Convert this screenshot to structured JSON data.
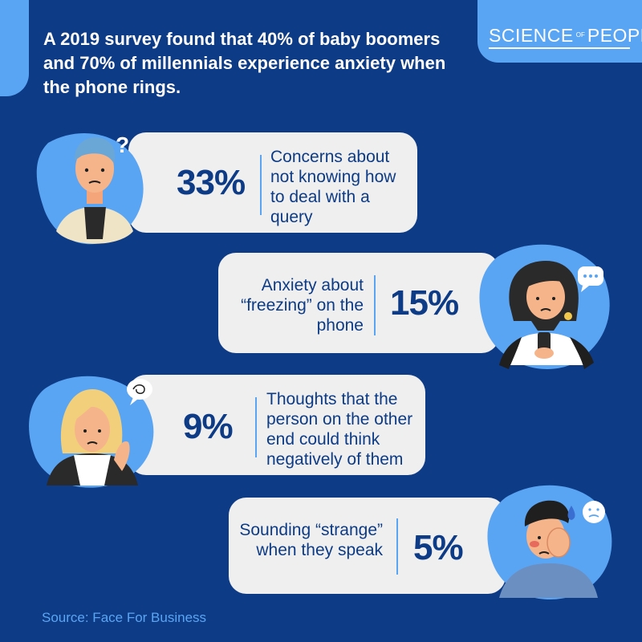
{
  "brand": {
    "logo_part1": "SCIENCE",
    "logo_part2": "OF",
    "logo_part3": "PEOPLE"
  },
  "headline": "A 2019 survey found that 40% of baby boomers and 70% of millennials experience anxiety when the phone rings.",
  "items": [
    {
      "percent": "33%",
      "description": "Concerns about not knowing how to deal with a query"
    },
    {
      "percent": "15%",
      "description": "Anxiety about “freezing” on the phone"
    },
    {
      "percent": "9%",
      "description": "Thoughts that the person on the other end could think negatively of them"
    },
    {
      "percent": "5%",
      "description": "Sounding “strange” when they speak"
    }
  ],
  "source": "Source: Face For Business",
  "colors": {
    "background": "#0d3b85",
    "accent": "#5aa5f3",
    "card": "#efefef",
    "text_dark": "#0d3b85"
  }
}
